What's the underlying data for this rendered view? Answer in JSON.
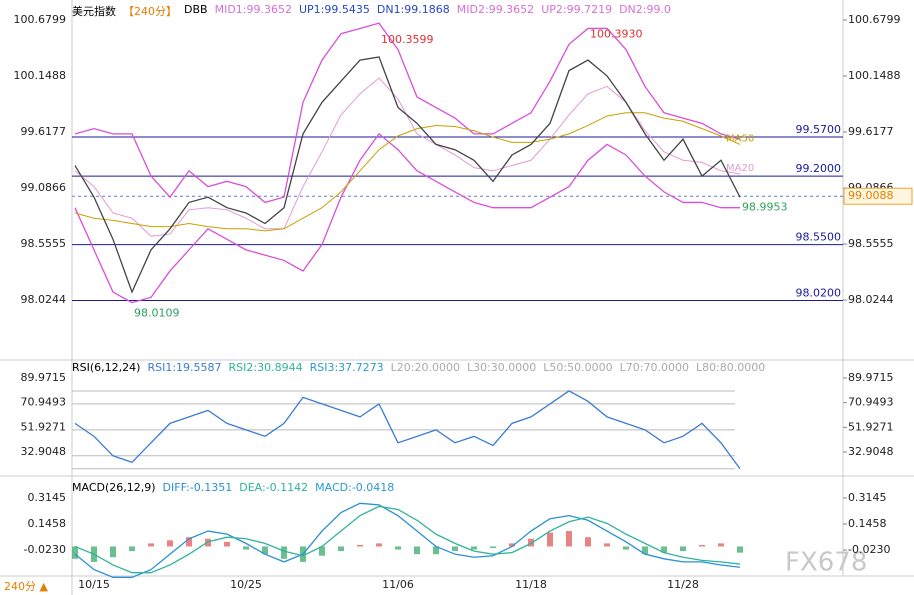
{
  "chart_data": [
    {
      "type": "line",
      "title": "美元指数",
      "subtitle": "【240分】",
      "indicator": "DBB",
      "indicator_labels": [
        "MID1:99.3652",
        "UP1:99.5435",
        "DN1:99.1868",
        "MID2:99.3652",
        "UP2:99.7219",
        "DN2:99.0"
      ],
      "categories": [
        null,
        "10/15",
        null,
        null,
        null,
        null,
        null,
        null,
        null,
        "10/25",
        null,
        null,
        null,
        null,
        null,
        null,
        null,
        "11/06",
        null,
        null,
        null,
        null,
        null,
        null,
        "11/18",
        null,
        null,
        null,
        null,
        null,
        null,
        null,
        "11/28",
        null,
        null,
        null
      ],
      "ylim": [
        97.503,
        100.794
      ],
      "yticks": [
        100.6799,
        100.1488,
        99.6177,
        99.0866,
        98.5555,
        98.0244
      ],
      "series": [
        {
          "color": "#d84fd8",
          "values": [
            99.6,
            99.65,
            99.6,
            99.6,
            99.2,
            99.0,
            99.25,
            99.1,
            99.15,
            99.1,
            98.95,
            99.0,
            99.9,
            100.3,
            100.55,
            100.6,
            100.65,
            100.4,
            99.95,
            99.85,
            99.75,
            99.6,
            99.6,
            99.7,
            99.8,
            100.1,
            100.45,
            100.6,
            100.6,
            100.4,
            100.05,
            99.8,
            99.75,
            99.7,
            99.6,
            99.55
          ]
        },
        {
          "color": "#d84fd8",
          "values": [
            98.9,
            98.5,
            98.1,
            98.0,
            98.05,
            98.3,
            98.5,
            98.7,
            98.6,
            98.5,
            98.45,
            98.4,
            98.3,
            98.55,
            99.0,
            99.35,
            99.6,
            99.45,
            99.25,
            99.15,
            99.05,
            98.95,
            98.9,
            98.9,
            98.9,
            99.0,
            99.1,
            99.35,
            99.5,
            99.4,
            99.2,
            99.05,
            98.95,
            98.95,
            98.9,
            98.9
          ]
        },
        {
          "name": "MA20",
          "color": "#e49ad0",
          "values": [
            99.25,
            99.1,
            98.85,
            98.8,
            98.63,
            98.65,
            98.88,
            98.9,
            98.88,
            98.8,
            98.7,
            98.7,
            99.1,
            99.43,
            99.78,
            99.98,
            100.13,
            99.93,
            99.6,
            99.5,
            99.4,
            99.28,
            99.25,
            99.3,
            99.35,
            99.55,
            99.78,
            99.98,
            100.05,
            99.9,
            99.63,
            99.43,
            99.35,
            99.33,
            99.25,
            99.22
          ]
        },
        {
          "name": "MA50",
          "color": "#c8a000",
          "values": [
            98.85,
            98.8,
            98.78,
            98.75,
            98.72,
            98.72,
            98.75,
            98.72,
            98.7,
            98.7,
            98.68,
            98.7,
            98.8,
            98.9,
            99.05,
            99.25,
            99.45,
            99.58,
            99.65,
            99.68,
            99.67,
            99.63,
            99.57,
            99.52,
            99.52,
            99.55,
            99.6,
            99.68,
            99.77,
            99.8,
            99.8,
            99.75,
            99.72,
            99.65,
            99.58,
            99.5
          ]
        },
        {
          "color": "#444444",
          "values": [
            99.3,
            99.0,
            98.6,
            98.1,
            98.5,
            98.7,
            98.95,
            99.0,
            98.9,
            98.85,
            98.75,
            98.9,
            99.6,
            99.9,
            100.1,
            100.3,
            100.33,
            99.85,
            99.7,
            99.5,
            99.45,
            99.35,
            99.15,
            99.4,
            99.5,
            99.7,
            100.2,
            100.3,
            100.15,
            99.9,
            99.6,
            99.35,
            99.55,
            99.2,
            99.35,
            99.0
          ]
        }
      ],
      "levels": [
        {
          "value": 99.57,
          "label": "99.5700"
        },
        {
          "value": 99.2,
          "label": "99.2000"
        },
        {
          "value": 98.55,
          "label": "98.5500"
        },
        {
          "value": 98.02,
          "label": "98.0200"
        }
      ],
      "annotations": [
        {
          "value": 100.3599,
          "label": "100.3599"
        },
        {
          "value": 100.393,
          "label": "100.3930"
        },
        {
          "value": 98.0109,
          "label": "98.0109"
        },
        {
          "value": 98.9953,
          "label": "98.9953"
        }
      ],
      "last_price": {
        "value": 99.0088,
        "label": "99.0088"
      },
      "footer": "240分 ▲",
      "watermark": "FX678"
    },
    {
      "type": "line",
      "title": "RSI(6,12,24)",
      "indicator_labels": [
        "RSI1:19.5587",
        "RSI2:30.8944",
        "RSI3:37.7273",
        "L20:20.0000",
        "L30:30.0000",
        "L50:50.0000",
        "L70:70.0000",
        "L80:80.0000"
      ],
      "levels": [
        20,
        30,
        50,
        70,
        80
      ],
      "ylim": [
        17.5,
        100
      ],
      "yticks": [
        89.9715,
        70.9493,
        51.9271,
        32.9048
      ],
      "series": [
        {
          "color": "#3a7bd5",
          "values": [
            55,
            45,
            30,
            25,
            40,
            55,
            60,
            65,
            55,
            50,
            45,
            55,
            75,
            70,
            65,
            60,
            70,
            40,
            45,
            50,
            40,
            45,
            38,
            55,
            60,
            70,
            80,
            72,
            60,
            55,
            50,
            40,
            45,
            55,
            40,
            20
          ]
        }
      ]
    },
    {
      "type": "macd",
      "title": "MACD(26,12,9)",
      "indicator_labels": [
        "DIFF:-0.1351",
        "DEA:-0.1142",
        "MACD:-0.0418"
      ],
      "ylim": [
        -0.185,
        0.444
      ],
      "yticks": [
        0.3145,
        0.1458,
        {
          "value": -0.023,
          "label": "-0.0230"
        }
      ],
      "histogram": [
        -0.08,
        -0.1,
        -0.07,
        -0.03,
        0.02,
        0.04,
        0.06,
        0.05,
        0.03,
        -0.02,
        -0.05,
        -0.08,
        -0.1,
        -0.06,
        -0.03,
        0.01,
        0.02,
        -0.02,
        -0.05,
        -0.05,
        -0.03,
        -0.02,
        -0.01,
        0.02,
        0.05,
        0.09,
        0.1,
        0.06,
        0.02,
        -0.02,
        -0.05,
        -0.04,
        -0.03,
        0.01,
        0.02,
        -0.04
      ],
      "series": [
        {
          "color": "#2a8fd8",
          "values": [
            -0.05,
            -0.15,
            -0.2,
            -0.2,
            -0.15,
            -0.05,
            0.05,
            0.1,
            0.08,
            0.02,
            -0.05,
            -0.1,
            -0.05,
            0.1,
            0.22,
            0.28,
            0.27,
            0.2,
            0.1,
            0.0,
            -0.05,
            -0.07,
            -0.06,
            0.0,
            0.1,
            0.18,
            0.2,
            0.17,
            0.1,
            0.03,
            -0.05,
            -0.08,
            -0.1,
            -0.1,
            -0.12,
            -0.135
          ]
        },
        {
          "color": "#2fb39a",
          "values": [
            0.0,
            -0.05,
            -0.12,
            -0.17,
            -0.17,
            -0.12,
            -0.05,
            0.03,
            0.06,
            0.05,
            0.02,
            -0.03,
            -0.06,
            0.0,
            0.1,
            0.2,
            0.26,
            0.24,
            0.17,
            0.08,
            0.02,
            -0.03,
            -0.05,
            -0.04,
            0.02,
            0.1,
            0.16,
            0.19,
            0.15,
            0.08,
            0.02,
            -0.04,
            -0.07,
            -0.09,
            -0.1,
            -0.114
          ]
        }
      ]
    }
  ]
}
